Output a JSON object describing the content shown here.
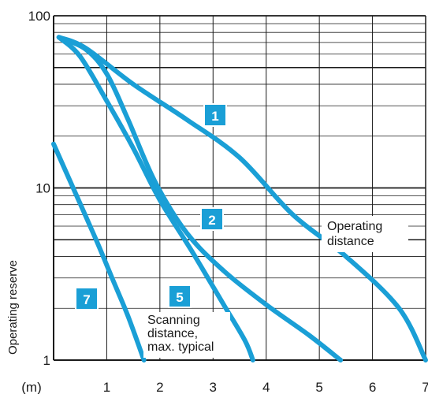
{
  "chart_data": {
    "type": "line",
    "y_scale": "log",
    "ylim": [
      1,
      100
    ],
    "xlim": [
      0,
      7
    ],
    "x_tick_labels": [
      "(m)",
      "1",
      "2",
      "3",
      "4",
      "5",
      "6",
      "7"
    ],
    "y_tick_labels": [
      "100",
      "10",
      "1"
    ],
    "ylabel": "Operating reserve",
    "grid": true,
    "series_color": "#1a9fd6",
    "series": [
      {
        "name": "1",
        "points": [
          [
            0.1,
            75
          ],
          [
            0.6,
            65
          ],
          [
            1.5,
            40
          ],
          [
            2.5,
            25
          ],
          [
            3.5,
            15
          ],
          [
            4.5,
            7
          ],
          [
            5.5,
            4
          ],
          [
            6.5,
            2
          ],
          [
            7.0,
            1
          ]
        ]
      },
      {
        "name": "2",
        "points": [
          [
            0.1,
            75
          ],
          [
            0.6,
            64
          ],
          [
            1.0,
            46
          ],
          [
            1.4,
            25
          ],
          [
            1.9,
            11
          ],
          [
            2.5,
            5.5
          ],
          [
            3.2,
            3.3
          ],
          [
            4.0,
            2.1
          ],
          [
            4.8,
            1.4
          ],
          [
            5.4,
            1
          ]
        ]
      },
      {
        "name": "5",
        "points": [
          [
            0.1,
            75
          ],
          [
            0.5,
            58
          ],
          [
            1.0,
            32
          ],
          [
            1.5,
            17
          ],
          [
            2.0,
            8.5
          ],
          [
            2.6,
            4.3
          ],
          [
            3.2,
            2.1
          ],
          [
            3.6,
            1.3
          ],
          [
            3.75,
            1
          ]
        ]
      },
      {
        "name": "7",
        "points": [
          [
            0.0,
            18
          ],
          [
            0.4,
            9.5
          ],
          [
            0.8,
            5
          ],
          [
            1.1,
            3
          ],
          [
            1.4,
            1.8
          ],
          [
            1.7,
            1
          ]
        ]
      }
    ],
    "annotations": [
      {
        "text": "Operating distance",
        "lines": [
          "Operating",
          "distance"
        ]
      },
      {
        "text": "Scanning distance, max. typical",
        "lines": [
          "Scanning",
          "distance,",
          "max. typical"
        ]
      }
    ]
  }
}
